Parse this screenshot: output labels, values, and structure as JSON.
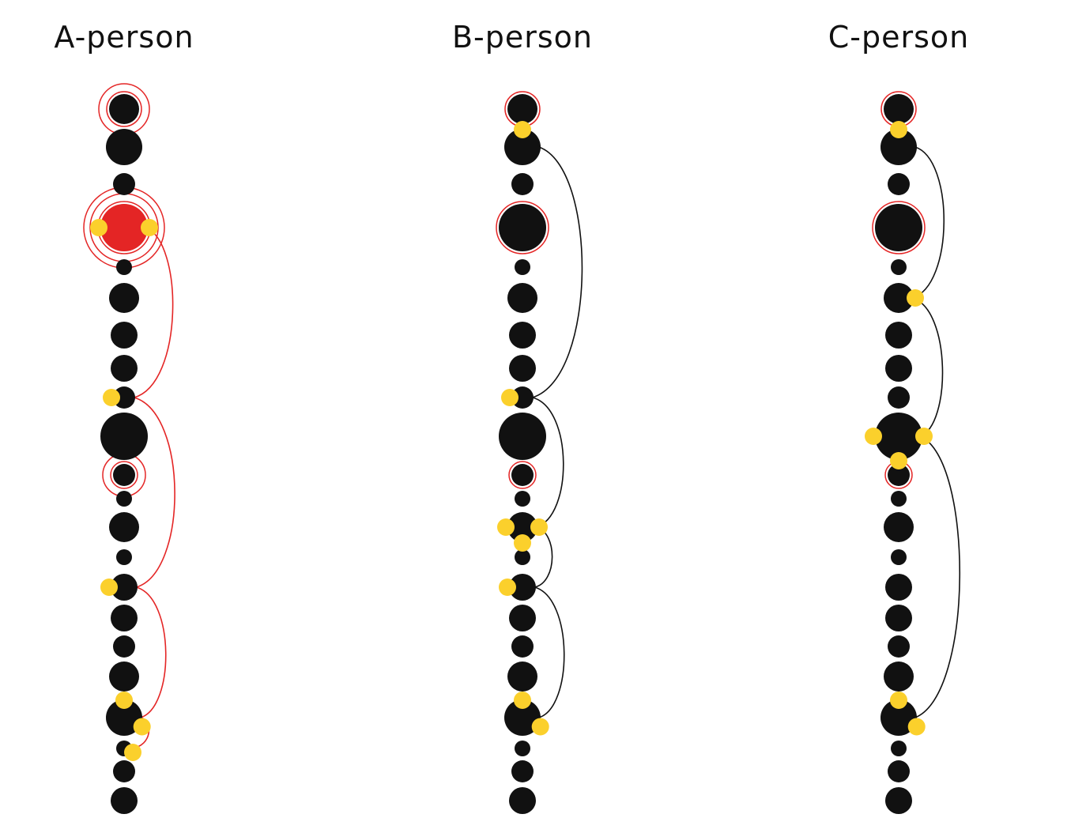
{
  "colors": {
    "background": "#ffffff",
    "node": "#111111",
    "highlight_ring": "#e42525",
    "active_node": "#e42525",
    "marker": "#fbd02c",
    "path_red": "#e42525",
    "path_black": "#111111",
    "title": "#111111"
  },
  "node_sizes": [
    "large",
    "xl",
    "small",
    "xxl",
    "xs",
    "large",
    "medium",
    "medium",
    "small",
    "xxl",
    "small",
    "xs",
    "large",
    "xs",
    "medium",
    "medium",
    "small",
    "large",
    "xl",
    "xs",
    "small",
    "medium"
  ],
  "panels": [
    {
      "id": "a",
      "title": "A-person",
      "rings": [
        {
          "node": 0,
          "count": 2
        },
        {
          "node": 3,
          "count": 3
        },
        {
          "node": 10,
          "count": 2
        }
      ],
      "filled_red": [
        3
      ],
      "markers": [
        {
          "node": 3,
          "side": "left"
        },
        {
          "node": 3,
          "side": "right"
        },
        {
          "node": 8,
          "side": "left"
        },
        {
          "node": 14,
          "side": "left"
        },
        {
          "node": 18,
          "side": "top"
        },
        {
          "node": 18,
          "side": "lower-right"
        },
        {
          "node": 19,
          "side": "lower-right"
        }
      ],
      "path_color": "red",
      "path_sequence": [
        3,
        8,
        14,
        18,
        19
      ]
    },
    {
      "id": "b",
      "title": "B-person",
      "rings": [
        {
          "node": 0,
          "count": 1
        },
        {
          "node": 3,
          "count": 1
        },
        {
          "node": 10,
          "count": 1
        }
      ],
      "filled_red": [],
      "markers": [
        {
          "node": 1,
          "side": "top"
        },
        {
          "node": 8,
          "side": "left"
        },
        {
          "node": 12,
          "side": "left"
        },
        {
          "node": 12,
          "side": "right"
        },
        {
          "node": 12,
          "side": "bottom"
        },
        {
          "node": 14,
          "side": "left"
        },
        {
          "node": 18,
          "side": "top"
        },
        {
          "node": 18,
          "side": "lower-right"
        }
      ],
      "path_color": "black",
      "path_sequence": [
        1,
        8,
        12,
        14,
        18
      ]
    },
    {
      "id": "c",
      "title": "C-person",
      "rings": [
        {
          "node": 0,
          "count": 1
        },
        {
          "node": 3,
          "count": 1
        },
        {
          "node": 10,
          "count": 1
        }
      ],
      "filled_red": [],
      "markers": [
        {
          "node": 1,
          "side": "top"
        },
        {
          "node": 5,
          "side": "right"
        },
        {
          "node": 9,
          "side": "left"
        },
        {
          "node": 9,
          "side": "right"
        },
        {
          "node": 9,
          "side": "bottom"
        },
        {
          "node": 18,
          "side": "top"
        },
        {
          "node": 18,
          "side": "lower-right"
        }
      ],
      "path_color": "black",
      "path_sequence": [
        1,
        5,
        9,
        18
      ]
    }
  ]
}
